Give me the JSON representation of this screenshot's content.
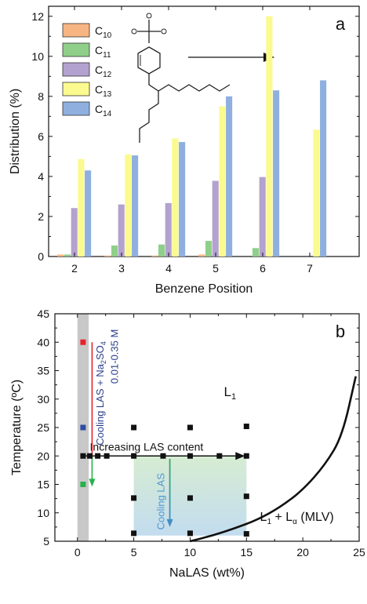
{
  "chart_data": [
    {
      "type": "bar",
      "panel_label": "a",
      "xlabel": "Benzene Position",
      "ylabel": "Distribution (%)",
      "categories": [
        "2",
        "3",
        "4",
        "5",
        "6",
        "7"
      ],
      "ylim": [
        0,
        12.5
      ],
      "yticks": [
        "0",
        "2",
        "4",
        "6",
        "8",
        "10",
        "12"
      ],
      "legend_position": "top-left",
      "series": [
        {
          "name_base": "C",
          "name_sub": "10",
          "color": "#f6b582",
          "values": [
            0.1,
            0.05,
            0.05,
            0.1,
            0,
            0
          ]
        },
        {
          "name_base": "C",
          "name_sub": "11",
          "color": "#8fcf8a",
          "values": [
            0.1,
            0.55,
            0.6,
            0.78,
            0.42,
            0
          ]
        },
        {
          "name_base": "C",
          "name_sub": "12",
          "color": "#b3a2cf",
          "values": [
            2.42,
            2.6,
            2.67,
            3.78,
            3.97,
            0
          ]
        },
        {
          "name_base": "C",
          "name_sub": "13",
          "color": "#fafa8f",
          "values": [
            4.87,
            5.1,
            5.9,
            7.5,
            12.0,
            6.33
          ]
        },
        {
          "name_base": "C",
          "name_sub": "14",
          "color": "#8fb0df",
          "values": [
            4.3,
            5.05,
            5.72,
            8.0,
            8.3,
            8.8
          ]
        }
      ]
    },
    {
      "type": "scatter",
      "panel_label": "b",
      "xlabel": "NaLAS (wt%)",
      "ylabel": "Temperature (ºC)",
      "xlim": [
        -2,
        25
      ],
      "ylim": [
        5,
        45
      ],
      "xticks": [
        "0",
        "5",
        "10",
        "15",
        "20",
        "25"
      ],
      "yticks": [
        "5",
        "10",
        "15",
        "20",
        "25",
        "30",
        "35",
        "40",
        "45"
      ],
      "points_black": [
        [
          0.5,
          20
        ],
        [
          1.1,
          20
        ],
        [
          1.8,
          20
        ],
        [
          2.6,
          20
        ],
        [
          5,
          25
        ],
        [
          5,
          20
        ],
        [
          5,
          12.6
        ],
        [
          5,
          6.4
        ],
        [
          7.6,
          20
        ],
        [
          10,
          25
        ],
        [
          10,
          20
        ],
        [
          10,
          12.6
        ],
        [
          10,
          6.4
        ],
        [
          12.6,
          20
        ],
        [
          15,
          25.2
        ],
        [
          15,
          20
        ],
        [
          15,
          12.9
        ],
        [
          15,
          6.3
        ]
      ],
      "points_colored": [
        {
          "x": 0.5,
          "y": 40,
          "color": "#e8222d"
        },
        {
          "x": 0.5,
          "y": 25,
          "color": "#2c4da0"
        },
        {
          "x": 0.5,
          "y": 15,
          "color": "#27b24a"
        }
      ],
      "boundary_curve": [
        [
          10,
          5
        ],
        [
          12,
          6
        ],
        [
          14,
          7.3
        ],
        [
          16,
          8.8
        ],
        [
          18,
          11
        ],
        [
          20,
          14
        ],
        [
          22,
          18.5
        ],
        [
          23.5,
          23.5
        ],
        [
          24.7,
          34
        ]
      ],
      "region_labels": {
        "l1": {
          "base": "L",
          "sub": "1"
        },
        "l1_lalpha": {
          "base1": "L",
          "sub1": "1",
          "middle": " + L",
          "sub2": "α",
          "end": " (MLV)"
        }
      },
      "annotations": {
        "increasing": "Increasing LAS content",
        "cooling_las": "Cooling LAS",
        "cooling_salt_prefix": "Cooling LAS + Na",
        "cooling_salt_sub1": "2",
        "cooling_salt_mid": "SO",
        "cooling_salt_sub2": "4",
        "cooling_salt_conc": "0.01-0.35 M"
      }
    }
  ],
  "colors": {
    "red_line": "#e8222d",
    "green_arrow": "#27b24a",
    "blue_text": "#2b3f8c",
    "light_blue_text": "#4f97d3",
    "gray_band": "#c8c8c8"
  }
}
